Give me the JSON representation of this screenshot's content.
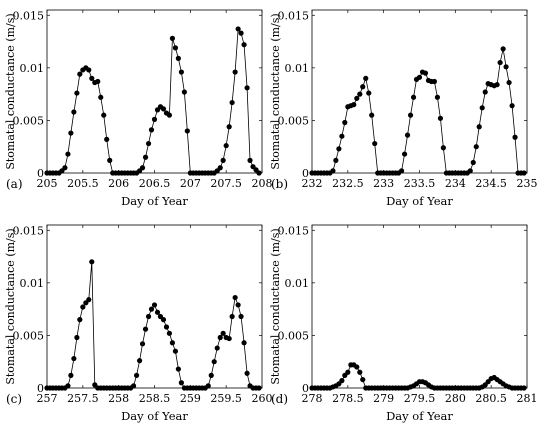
{
  "chart_data": [
    {
      "type": "line",
      "panel_label": "(a)",
      "xlabel": "Day of Year",
      "ylabel": "Stomatal conductance (m/s)",
      "xlim": [
        205,
        208
      ],
      "ylim": [
        0,
        0.0155
      ],
      "xticks": [
        205,
        205.5,
        206,
        206.5,
        207,
        207.5,
        208
      ],
      "xtick_labels": [
        "205",
        "205.5",
        "206",
        "206.5",
        "207",
        "207.5",
        "208"
      ],
      "yticks": [
        0,
        0.005,
        0.01,
        0.015
      ],
      "ytick_labels": [
        "0",
        "0.005",
        "0.01",
        "0.015"
      ],
      "x": [
        205.0,
        205.042,
        205.083,
        205.125,
        205.167,
        205.208,
        205.25,
        205.292,
        205.333,
        205.375,
        205.417,
        205.458,
        205.5,
        205.542,
        205.583,
        205.625,
        205.667,
        205.708,
        205.75,
        205.792,
        205.833,
        205.875,
        205.917,
        205.958,
        206.0,
        206.042,
        206.083,
        206.125,
        206.167,
        206.208,
        206.25,
        206.292,
        206.333,
        206.375,
        206.417,
        206.458,
        206.5,
        206.542,
        206.583,
        206.625,
        206.667,
        206.708,
        206.75,
        206.792,
        206.833,
        206.875,
        206.917,
        206.958,
        207.0,
        207.042,
        207.083,
        207.125,
        207.167,
        207.208,
        207.25,
        207.292,
        207.333,
        207.375,
        207.417,
        207.458,
        207.5,
        207.542,
        207.583,
        207.625,
        207.667,
        207.708,
        207.75,
        207.792,
        207.833,
        207.875,
        207.917,
        207.958
      ],
      "y": [
        0,
        0,
        0,
        0,
        0,
        0.0002,
        0.0005,
        0.0018,
        0.0038,
        0.0058,
        0.0076,
        0.0094,
        0.0098,
        0.01,
        0.0098,
        0.009,
        0.0086,
        0.0087,
        0.0072,
        0.0055,
        0.0032,
        0.0012,
        0,
        0,
        0,
        0,
        0,
        0,
        0,
        0,
        0,
        0.0002,
        0.0005,
        0.0015,
        0.0028,
        0.0041,
        0.0051,
        0.006,
        0.0063,
        0.0061,
        0.0057,
        0.0055,
        0.0128,
        0.0119,
        0.0109,
        0.0096,
        0.0077,
        0.004,
        0,
        0,
        0,
        0,
        0,
        0,
        0,
        0,
        0,
        0.0002,
        0.0005,
        0.0012,
        0.0026,
        0.0044,
        0.0067,
        0.0096,
        0.0137,
        0.0133,
        0.0122,
        0.0081,
        0.0012,
        0.0006,
        0.0003,
        0
      ]
    },
    {
      "type": "line",
      "panel_label": "(b)",
      "xlabel": "Day of Year",
      "ylabel": "Stomatal conductance (m/s)",
      "xlim": [
        232,
        235
      ],
      "ylim": [
        0,
        0.0155
      ],
      "xticks": [
        232,
        232.5,
        233,
        233.5,
        234,
        234.5,
        235
      ],
      "xtick_labels": [
        "232",
        "232.5",
        "233",
        "233.5",
        "234",
        "234.5",
        "235"
      ],
      "yticks": [
        0,
        0.005,
        0.01,
        0.015
      ],
      "ytick_labels": [
        "0",
        "0.005",
        "0.01",
        "0.015"
      ],
      "x": [
        232.0,
        232.042,
        232.083,
        232.125,
        232.167,
        232.208,
        232.25,
        232.292,
        232.333,
        232.375,
        232.417,
        232.458,
        232.5,
        232.542,
        232.583,
        232.625,
        232.667,
        232.708,
        232.75,
        232.792,
        232.833,
        232.875,
        232.917,
        232.958,
        233.0,
        233.042,
        233.083,
        233.125,
        233.167,
        233.208,
        233.25,
        233.292,
        233.333,
        233.375,
        233.417,
        233.458,
        233.5,
        233.542,
        233.583,
        233.625,
        233.667,
        233.708,
        233.75,
        233.792,
        233.833,
        233.875,
        233.917,
        233.958,
        234.0,
        234.042,
        234.083,
        234.125,
        234.167,
        234.208,
        234.25,
        234.292,
        234.333,
        234.375,
        234.417,
        234.458,
        234.5,
        234.542,
        234.583,
        234.625,
        234.667,
        234.708,
        234.75,
        234.792,
        234.833,
        234.875,
        234.917,
        234.958
      ],
      "y": [
        0,
        0,
        0,
        0,
        0,
        0,
        0,
        0.0002,
        0.0012,
        0.0023,
        0.0035,
        0.0048,
        0.0063,
        0.0064,
        0.0065,
        0.0071,
        0.0075,
        0.0082,
        0.009,
        0.0076,
        0.0055,
        0.0028,
        0,
        0,
        0,
        0,
        0,
        0,
        0,
        0,
        0.0002,
        0.0018,
        0.0036,
        0.0055,
        0.0072,
        0.0089,
        0.0091,
        0.0096,
        0.0095,
        0.0088,
        0.0087,
        0.0087,
        0.0072,
        0.0052,
        0.0024,
        0,
        0,
        0,
        0,
        0,
        0,
        0,
        0,
        0.0002,
        0.001,
        0.0025,
        0.0044,
        0.0062,
        0.0077,
        0.0085,
        0.0084,
        0.0083,
        0.0084,
        0.0105,
        0.0118,
        0.0101,
        0.0086,
        0.0064,
        0.0034,
        0,
        0,
        0
      ]
    },
    {
      "type": "line",
      "panel_label": "(c)",
      "xlabel": "Day of Year",
      "ylabel": "Stomatal conductance (m/s)",
      "xlim": [
        257,
        260
      ],
      "ylim": [
        0,
        0.0155
      ],
      "xticks": [
        257,
        257.5,
        258,
        258.5,
        259,
        259.5,
        260
      ],
      "xtick_labels": [
        "257",
        "257.5",
        "258",
        "258.5",
        "259",
        "259.5",
        "260"
      ],
      "yticks": [
        0,
        0.005,
        0.01,
        0.015
      ],
      "ytick_labels": [
        "0",
        "0.005",
        "0.01",
        "0.015"
      ],
      "x": [
        257.0,
        257.042,
        257.083,
        257.125,
        257.167,
        257.208,
        257.25,
        257.292,
        257.333,
        257.375,
        257.417,
        257.458,
        257.5,
        257.542,
        257.583,
        257.625,
        257.667,
        257.708,
        257.75,
        257.792,
        257.833,
        257.875,
        257.917,
        257.958,
        258.0,
        258.042,
        258.083,
        258.125,
        258.167,
        258.208,
        258.25,
        258.292,
        258.333,
        258.375,
        258.417,
        258.458,
        258.5,
        258.542,
        258.583,
        258.625,
        258.667,
        258.708,
        258.75,
        258.792,
        258.833,
        258.875,
        258.917,
        258.958,
        259.0,
        259.042,
        259.083,
        259.125,
        259.167,
        259.208,
        259.25,
        259.292,
        259.333,
        259.375,
        259.417,
        259.458,
        259.5,
        259.542,
        259.583,
        259.625,
        259.667,
        259.708,
        259.75,
        259.792,
        259.833,
        259.875,
        259.917,
        259.958
      ],
      "y": [
        0,
        0,
        0,
        0,
        0,
        0,
        0,
        0.0002,
        0.0012,
        0.0028,
        0.0048,
        0.0065,
        0.0077,
        0.0081,
        0.0084,
        0.012,
        0.0003,
        0,
        0,
        0,
        0,
        0,
        0,
        0,
        0,
        0,
        0,
        0,
        0,
        0.0002,
        0.0012,
        0.0026,
        0.0042,
        0.0056,
        0.0068,
        0.0075,
        0.0079,
        0.0072,
        0.0068,
        0.0065,
        0.0058,
        0.0052,
        0.0043,
        0.0035,
        0.0018,
        0.0005,
        0,
        0,
        0,
        0,
        0,
        0,
        0,
        0,
        0.0002,
        0.0012,
        0.0025,
        0.0038,
        0.0048,
        0.0052,
        0.0048,
        0.0047,
        0.0068,
        0.0086,
        0.0079,
        0.0068,
        0.0043,
        0.0014,
        0.0002,
        0,
        0,
        0
      ]
    },
    {
      "type": "line",
      "panel_label": "(d)",
      "xlabel": "Day of Year",
      "ylabel": "Stomatal conductance (m/s)",
      "xlim": [
        278,
        281
      ],
      "ylim": [
        0,
        0.0155
      ],
      "xticks": [
        278,
        278.5,
        279,
        279.5,
        280,
        280.5,
        281
      ],
      "xtick_labels": [
        "278",
        "278.5",
        "279",
        "279.5",
        "280",
        "280.5",
        "281"
      ],
      "yticks": [
        0,
        0.005,
        0.01,
        0.015
      ],
      "ytick_labels": [
        "0",
        "0.005",
        "0.01",
        "0.015"
      ],
      "x": [
        278.0,
        278.042,
        278.083,
        278.125,
        278.167,
        278.208,
        278.25,
        278.292,
        278.333,
        278.375,
        278.417,
        278.458,
        278.5,
        278.542,
        278.583,
        278.625,
        278.667,
        278.708,
        278.75,
        278.792,
        278.833,
        278.875,
        278.917,
        278.958,
        279.0,
        279.042,
        279.083,
        279.125,
        279.167,
        279.208,
        279.25,
        279.292,
        279.333,
        279.375,
        279.417,
        279.458,
        279.5,
        279.542,
        279.583,
        279.625,
        279.667,
        279.708,
        279.75,
        279.792,
        279.833,
        279.875,
        279.917,
        279.958,
        280.0,
        280.042,
        280.083,
        280.125,
        280.167,
        280.208,
        280.25,
        280.292,
        280.333,
        280.375,
        280.417,
        280.458,
        280.5,
        280.542,
        280.583,
        280.625,
        280.667,
        280.708,
        280.75,
        280.792,
        280.833,
        280.875,
        280.917,
        280.958
      ],
      "y": [
        0,
        0,
        0,
        0,
        0,
        0,
        0,
        0.0001,
        0.0002,
        0.0004,
        0.0007,
        0.0012,
        0.0015,
        0.0022,
        0.0022,
        0.002,
        0.0015,
        0.0008,
        0,
        0,
        0,
        0,
        0,
        0,
        0,
        0,
        0,
        0,
        0,
        0,
        0,
        0,
        0,
        0.0001,
        0.0002,
        0.0004,
        0.0006,
        0.0006,
        0.0005,
        0.0003,
        0.0001,
        0,
        0,
        0,
        0,
        0,
        0,
        0,
        0,
        0,
        0,
        0,
        0,
        0,
        0,
        0,
        0,
        0.0001,
        0.0003,
        0.0006,
        0.0009,
        0.001,
        0.0008,
        0.0006,
        0.0004,
        0.0002,
        0.0001,
        0,
        0,
        0,
        0,
        0
      ]
    }
  ]
}
